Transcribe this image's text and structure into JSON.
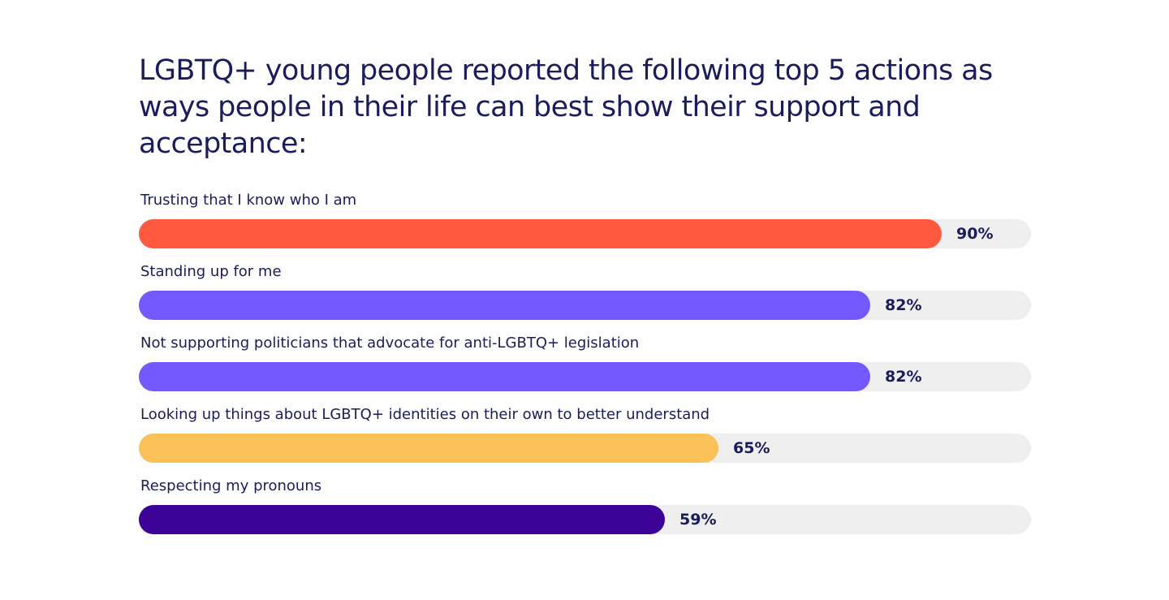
{
  "chart_data": {
    "type": "bar",
    "orientation": "horizontal",
    "title": "LGBTQ+ young people reported the following top 5 actions as ways people in their life can best show their support and acceptance:",
    "categories": [
      "Trusting that I know who I am",
      "Standing up for me",
      "Not supporting politicians that advocate for anti-LGBTQ+ legislation",
      "Looking up things about LGBTQ+ identities on their own to better understand",
      "Respecting my pronouns"
    ],
    "values": [
      90,
      82,
      82,
      65,
      59
    ],
    "value_labels": [
      "90%",
      "82%",
      "82%",
      "65%",
      "59%"
    ],
    "colors": [
      "#ff5a3f",
      "#7459ff",
      "#7459ff",
      "#f9c158",
      "#3d0399"
    ],
    "track_color": "#efefef",
    "text_color": "#1a1c5c",
    "xlim": [
      0,
      100
    ],
    "grid": false,
    "legend": "none"
  }
}
